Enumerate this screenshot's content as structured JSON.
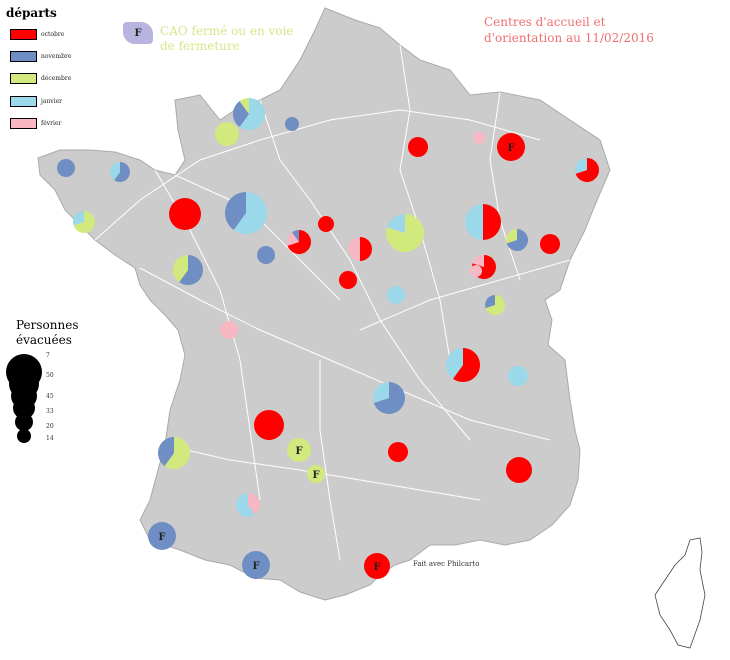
{
  "legend": {
    "title": "départs",
    "items": [
      {
        "label": "octobre",
        "color": "#ff0000"
      },
      {
        "label": "novembre",
        "color": "#6f8fc4"
      },
      {
        "label": "décembre",
        "color": "#d2e97e"
      },
      {
        "label": "janvier",
        "color": "#9ad8ea"
      },
      {
        "label": "février",
        "color": "#f7b8c4"
      }
    ]
  },
  "cao": {
    "marker": "F",
    "label": "CAO fermé ou en voie de fermeture",
    "color": "#b7b5e0"
  },
  "title": "Centres d'accueil et d'orientation au 11/02/2016",
  "size_legend": {
    "title": "Personnes évacuées",
    "values": [
      "7",
      "50",
      "45",
      "33",
      "20",
      "14"
    ]
  },
  "credit": "Fait avec Philcarto",
  "colors": {
    "land": "#cccccc",
    "border": "#ffffff",
    "octobre": "#ff0000",
    "novembre": "#6f8fc4",
    "decembre": "#d2e97e",
    "janvier": "#9ad8ea",
    "fevrier": "#f7b8c4"
  },
  "centers": [
    {
      "id": "c1",
      "fractions": {
        "janvier": 0.6,
        "novembre": 0.3,
        "decembre": 0.1
      }
    },
    {
      "id": "c2",
      "fractions": {
        "decembre": 1.0
      }
    },
    {
      "id": "c3",
      "fractions": {
        "novembre": 1.0
      }
    },
    {
      "id": "c4",
      "fractions": {
        "octobre": 1.0
      }
    },
    {
      "id": "c5",
      "fractions": {
        "octobre": 1.0
      },
      "closed": true
    },
    {
      "id": "c6",
      "fractions": {
        "fevrier": 1.0
      }
    },
    {
      "id": "c7",
      "fractions": {
        "octobre": 0.7,
        "janvier": 0.3
      }
    },
    {
      "id": "c8",
      "fractions": {
        "novembre": 0.6,
        "janvier": 0.4
      }
    },
    {
      "id": "c9",
      "fractions": {
        "decembre": 0.7,
        "janvier": 0.3
      }
    },
    {
      "id": "c10",
      "fractions": {
        "janvier": 0.6,
        "novembre": 0.4
      }
    },
    {
      "id": "c11",
      "fractions": {
        "octobre": 1.0
      }
    },
    {
      "id": "c12",
      "fractions": {
        "octobre": 0.7,
        "fevrier": 0.2,
        "novembre": 0.1
      }
    },
    {
      "id": "c13",
      "fractions": {
        "novembre": 1.0
      }
    },
    {
      "id": "c14",
      "fractions": {
        "octobre": 1.0
      }
    },
    {
      "id": "c15",
      "fractions": {
        "decembre": 0.8,
        "janvier": 0.2
      }
    },
    {
      "id": "c16",
      "fractions": {
        "octobre": 0.8,
        "fevrier": 0.2
      }
    },
    {
      "id": "c17",
      "fractions": {
        "novembre": 0.7,
        "decembre": 0.3
      }
    },
    {
      "id": "c18",
      "fractions": {
        "fevrier": 1.0
      }
    },
    {
      "id": "c19",
      "fractions": {
        "octobre": 1.0
      }
    },
    {
      "id": "c20",
      "fractions": {
        "novembre": 0.6,
        "decembre": 0.4
      }
    },
    {
      "id": "c21",
      "fractions": {
        "novembre": 1.0
      }
    },
    {
      "id": "c22",
      "fractions": {
        "octobre": 0.5,
        "fevrier": 0.5
      }
    },
    {
      "id": "c23",
      "fractions": {
        "janvier": 1.0
      }
    },
    {
      "id": "c24",
      "fractions": {
        "octobre": 1.0
      }
    },
    {
      "id": "c25",
      "fractions": {
        "octobre": 0.5,
        "janvier": 0.5
      }
    },
    {
      "id": "c26",
      "fractions": {
        "decembre": 1.0
      },
      "closed": true
    },
    {
      "id": "c27",
      "fractions": {
        "decembre": 1.0
      },
      "closed": true
    },
    {
      "id": "c28",
      "fractions": {
        "decembre": 0.6,
        "novembre": 0.4
      }
    },
    {
      "id": "c29",
      "fractions": {
        "fevrier": 0.4,
        "janvier": 0.6
      }
    },
    {
      "id": "c30",
      "fractions": {
        "octobre": 1.0
      }
    },
    {
      "id": "c31",
      "fractions": {
        "octobre": 0.6,
        "janvier": 0.4
      }
    },
    {
      "id": "c32",
      "fractions": {
        "fevrier": 1.0
      }
    },
    {
      "id": "c33",
      "fractions": {
        "novembre": 1.0
      },
      "closed": true
    },
    {
      "id": "c34",
      "fractions": {
        "novembre": 1.0
      },
      "closed": true
    },
    {
      "id": "c35",
      "fractions": {
        "octobre": 1.0
      },
      "closed": true
    },
    {
      "id": "c36",
      "fractions": {
        "octobre": 1.0
      }
    },
    {
      "id": "c37",
      "fractions": {
        "octobre": 1.0
      }
    },
    {
      "id": "c38",
      "fractions": {
        "decembre": 0.7,
        "novembre": 0.3
      }
    },
    {
      "id": "c39",
      "fractions": {
        "novembre": 0.7,
        "janvier": 0.3
      }
    },
    {
      "id": "c40",
      "fractions": {
        "janvier": 1.0
      }
    }
  ]
}
